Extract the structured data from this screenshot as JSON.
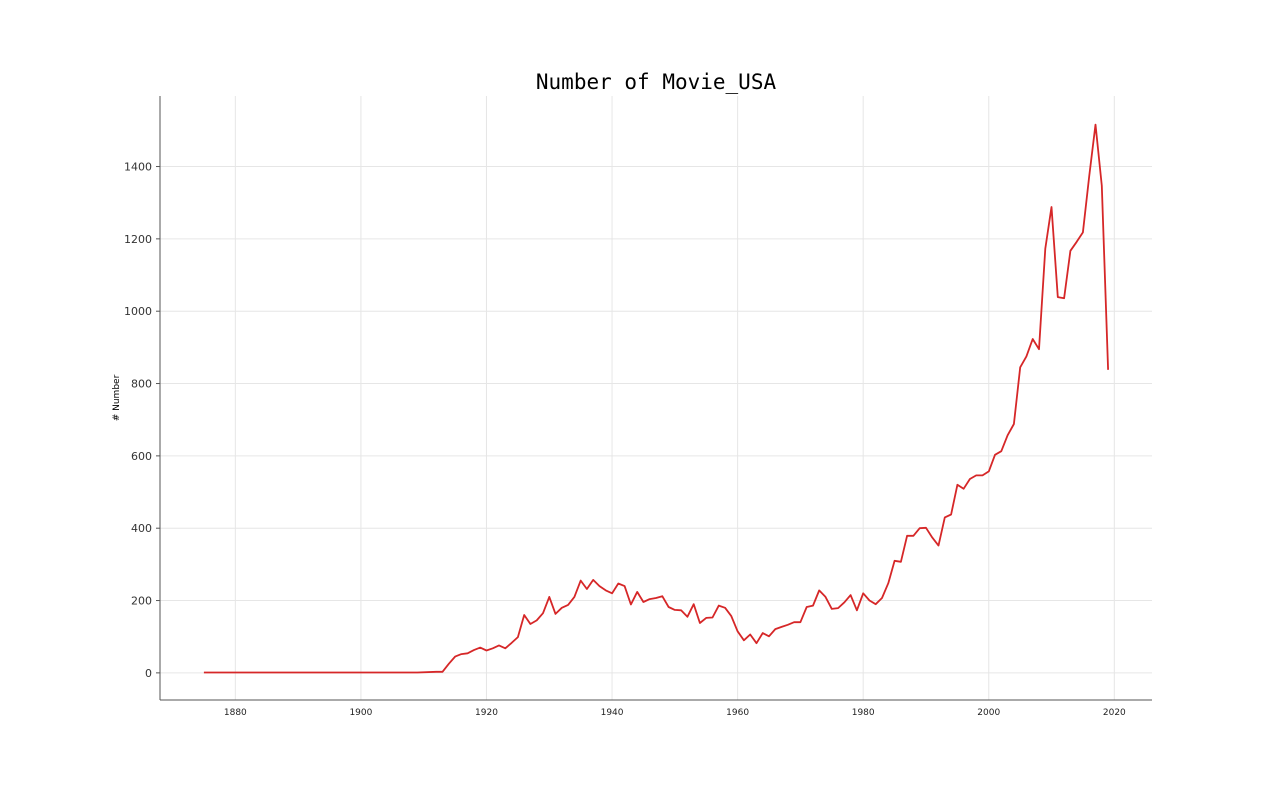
{
  "chart_data": {
    "type": "line",
    "title": "Number of Movie_USA",
    "xlabel": "",
    "ylabel": "# Number",
    "xlim": [
      1868,
      2026
    ],
    "ylim": [
      -75,
      1595
    ],
    "x_ticks": [
      1880,
      1900,
      1920,
      1940,
      1960,
      1980,
      2000,
      2020
    ],
    "y_ticks": [
      0,
      200,
      400,
      600,
      800,
      1000,
      1200,
      1400
    ],
    "grid": true,
    "colors": {
      "line": "#d62728"
    },
    "series": [
      {
        "x": [
          1875,
          1909,
          1912,
          1913,
          1914,
          1915,
          1916,
          1917,
          1918,
          1919,
          1920,
          1921,
          1922,
          1923,
          1924,
          1925,
          1926,
          1927,
          1928,
          1929,
          1930,
          1931,
          1932,
          1933,
          1934,
          1935,
          1936,
          1937,
          1938,
          1939,
          1940,
          1941,
          1942,
          1943,
          1944,
          1945,
          1946,
          1947,
          1948,
          1949,
          1950,
          1951,
          1952,
          1953,
          1954,
          1955,
          1956,
          1957,
          1958,
          1959,
          1960,
          1961,
          1962,
          1963,
          1964,
          1965,
          1966,
          1967,
          1968,
          1969,
          1970,
          1971,
          1972,
          1973,
          1974,
          1975,
          1976,
          1977,
          1978,
          1979,
          1980,
          1981,
          1982,
          1983,
          1984,
          1985,
          1986,
          1987,
          1988,
          1989,
          1990,
          1991,
          1992,
          1993,
          1994,
          1995,
          1996,
          1997,
          1998,
          1999,
          2000,
          2001,
          2002,
          2003,
          2004,
          2005,
          2006,
          2007,
          2008,
          2009,
          2010,
          2011,
          2012,
          2013,
          2014,
          2015,
          2016,
          2017,
          2018,
          2019
        ],
        "values": [
          1,
          1,
          3,
          3,
          25,
          45,
          52,
          54,
          63,
          70,
          62,
          68,
          76,
          68,
          83,
          99,
          160,
          135,
          145,
          165,
          210,
          163,
          180,
          188,
          210,
          255,
          232,
          257,
          240,
          228,
          220,
          247,
          240,
          189,
          224,
          196,
          204,
          207,
          212,
          182,
          174,
          173,
          155,
          190,
          138,
          152,
          153,
          186,
          180,
          157,
          115,
          90,
          106,
          82,
          110,
          101,
          121,
          127,
          133,
          140,
          140,
          182,
          186,
          228,
          210,
          177,
          179,
          195,
          215,
          173,
          220,
          200,
          190,
          207,
          248,
          310,
          307,
          379,
          379,
          400,
          401,
          374,
          352,
          430,
          438,
          520,
          509,
          536,
          546,
          546,
          557,
          603,
          613,
          657,
          688,
          845,
          875,
          923,
          895,
          1173,
          1288,
          1039,
          1036,
          1167,
          1192,
          1218,
          1373,
          1516,
          1347,
          838
        ]
      }
    ]
  }
}
